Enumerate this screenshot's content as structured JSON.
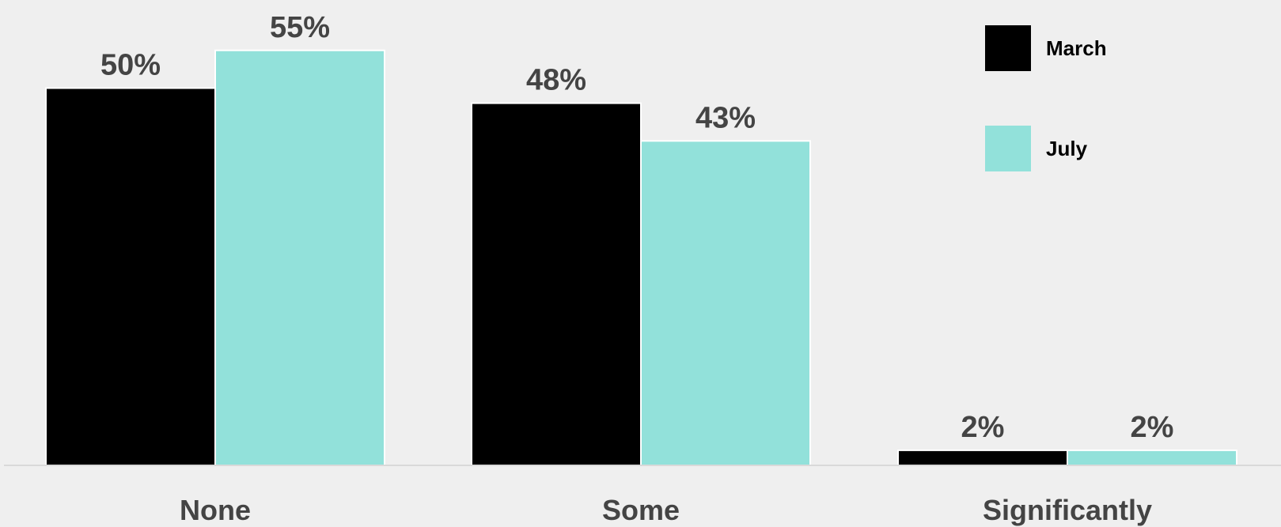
{
  "chart_data": {
    "type": "bar",
    "title": "",
    "xlabel": "",
    "ylabel": "",
    "categories": [
      "None",
      "Some",
      "Significantly"
    ],
    "series": [
      {
        "name": "March",
        "color": "#000000",
        "values": [
          50,
          48,
          2
        ],
        "labels": [
          "50%",
          "48%",
          "2%"
        ]
      },
      {
        "name": "July",
        "color": "#92e1da",
        "values": [
          55,
          43,
          2
        ],
        "labels": [
          "55%",
          "43%",
          "2%"
        ]
      }
    ],
    "ylim": [
      0,
      60
    ],
    "grid": false,
    "legend_position": "top-right",
    "axis_color": "#d9d9d9"
  }
}
